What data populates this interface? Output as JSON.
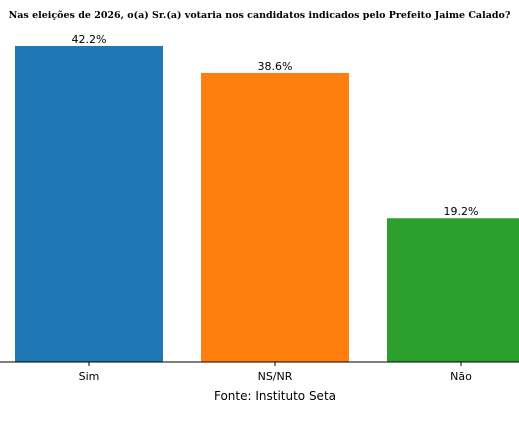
{
  "chart_data": {
    "type": "bar",
    "title": "Nas eleições de 2026, o(a) Sr.(a) votaria nos candidatos indicados pelo Prefeito Jaime Calado?",
    "categories": [
      "Sim",
      "NS/NR",
      "Não"
    ],
    "values": [
      42.2,
      38.6,
      19.2
    ],
    "value_labels": [
      "42.2%",
      "38.6%",
      "19.2%"
    ],
    "colors": [
      "#1f77b4",
      "#ff7f0e",
      "#2ca02c"
    ],
    "xlabel": "",
    "ylabel": "",
    "ylim": [
      0,
      42.2
    ],
    "grid": false,
    "source": "Fonte: Instituto Seta"
  }
}
